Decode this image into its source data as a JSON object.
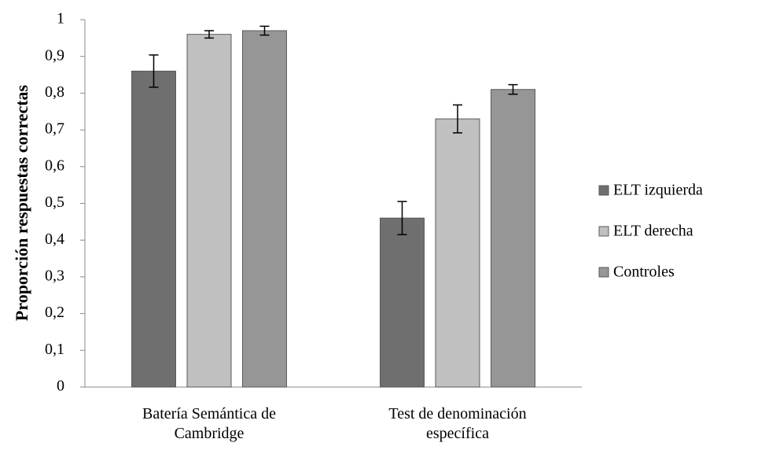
{
  "chart_data": {
    "type": "bar",
    "y_label": "Proporción respuestas correctas",
    "categories": [
      "Batería Semántica de Cambridge",
      "Test de denominación específica"
    ],
    "series": [
      {
        "name": "ELT izquierda",
        "color": "#6f6f6f",
        "values": [
          0.86,
          0.46
        ],
        "errors": [
          0.044,
          0.045
        ]
      },
      {
        "name": "ELT derecha",
        "color": "#c0c0c0",
        "values": [
          0.96,
          0.73
        ],
        "errors": [
          0.01,
          0.038
        ]
      },
      {
        "name": "Controles",
        "color": "#969696",
        "values": [
          0.97,
          0.81
        ],
        "errors": [
          0.012,
          0.013
        ]
      }
    ],
    "ylim": [
      0,
      1
    ],
    "yticks": [
      0,
      {
        "value": 0.1,
        "label": "0,1"
      },
      {
        "value": 0.2,
        "label": "0,2"
      },
      {
        "value": 0.3,
        "label": "0,3"
      },
      {
        "value": 0.4,
        "label": "0,4"
      },
      {
        "value": 0.5,
        "label": "0,5"
      },
      {
        "value": 0.6,
        "label": "0,6"
      },
      {
        "value": 0.7,
        "label": "0,7"
      },
      {
        "value": 0.8,
        "label": "0,8"
      },
      {
        "value": 0.9,
        "label": "0,9"
      },
      1
    ],
    "legend": "right"
  }
}
